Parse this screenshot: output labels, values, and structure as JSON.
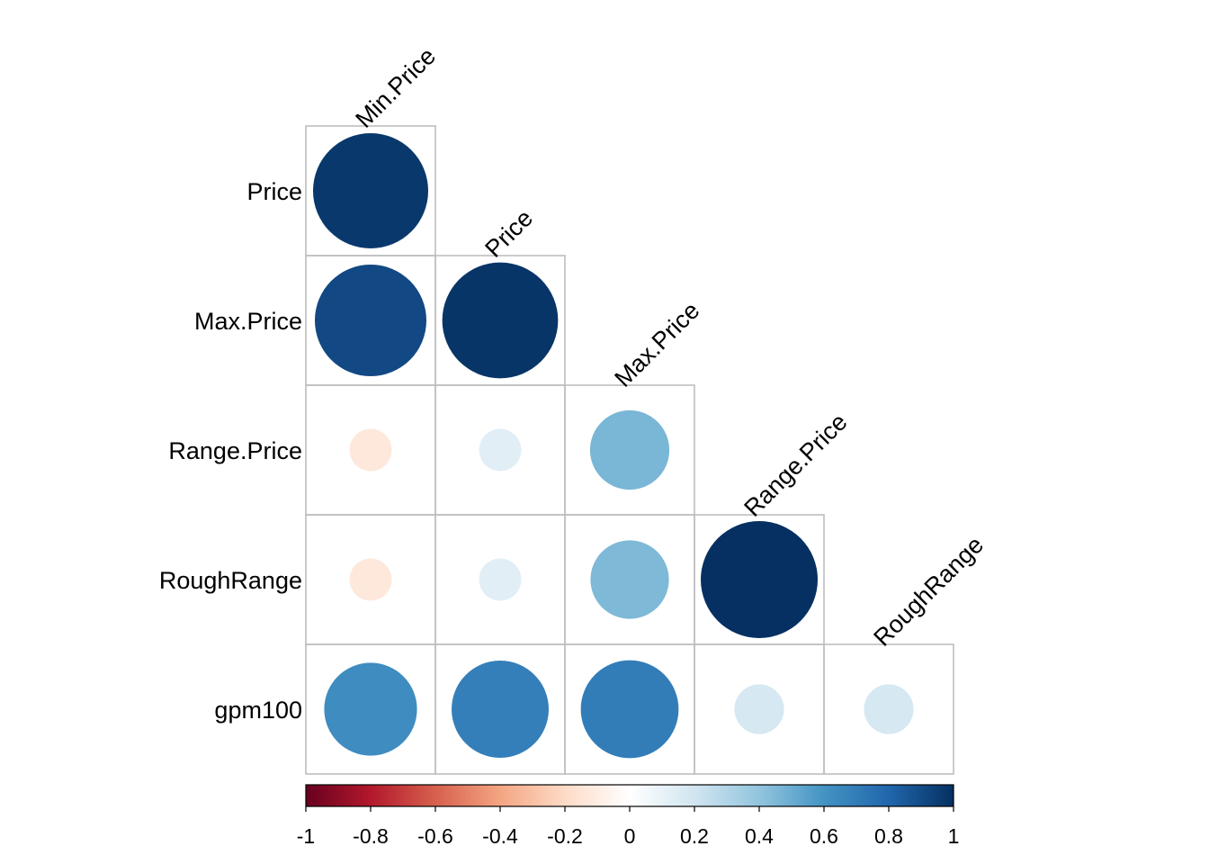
{
  "chart_data": {
    "type": "heatmap",
    "style": "correlation-circles-lower-triangle",
    "title": "",
    "xlabel": "",
    "ylabel": "",
    "row_labels": [
      "Price",
      "Max.Price",
      "Range.Price",
      "RoughRange",
      "gpm100"
    ],
    "col_labels": [
      "Min.Price",
      "Price",
      "Max.Price",
      "Range.Price",
      "RoughRange"
    ],
    "values": [
      [
        0.97
      ],
      [
        0.91,
        0.98
      ],
      [
        -0.13,
        0.13,
        0.46
      ],
      [
        -0.13,
        0.13,
        0.45,
        1.0
      ],
      [
        0.63,
        0.69,
        0.7,
        0.18,
        0.18
      ]
    ],
    "colorbar": {
      "range": [
        -1,
        1
      ],
      "ticks": [
        -1,
        -0.8,
        -0.6,
        -0.4,
        -0.2,
        0,
        0.2,
        0.4,
        0.6,
        0.8,
        1
      ],
      "tick_labels": [
        "-1",
        "-0.8",
        "-0.6",
        "-0.4",
        "-0.2",
        "0",
        "0.2",
        "0.4",
        "0.6",
        "0.8",
        "1"
      ],
      "colors": [
        "#67001F",
        "#B2182B",
        "#D6604D",
        "#F4A582",
        "#FDDBC7",
        "#FFFFFF",
        "#D1E5F0",
        "#92C5DE",
        "#4393C3",
        "#2166AC",
        "#053061"
      ],
      "placement": "bottom"
    }
  }
}
